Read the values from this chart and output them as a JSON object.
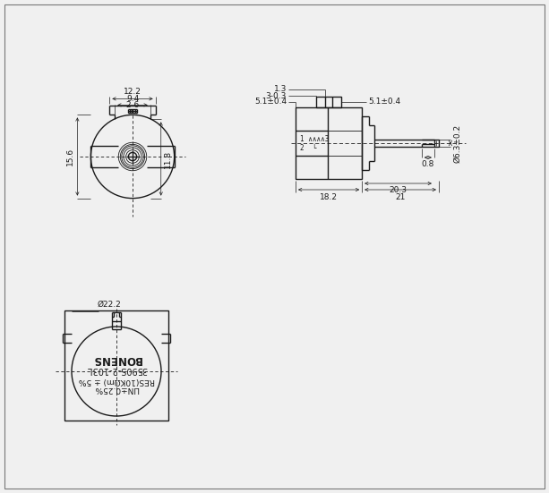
{
  "bg_color": "#f0f0f0",
  "line_color": "#1a1a1a",
  "lw": 1.0,
  "tlw": 0.6,
  "dlw": 0.5,
  "fs": 6.5,
  "dims": {
    "width_outer": "12.2",
    "width_inner": "9.4",
    "width_shaft": "2 6",
    "h_total": "15.6",
    "h_body": "11.8",
    "top_1": "1.3",
    "top_2": "3-0.3",
    "top_3": "5.1±0.4",
    "top_4": "5.1±0.4",
    "shaft_diam": "Ø6.3±0.2",
    "body_w": "18.2",
    "shaft_len": "21",
    "shaft_to_end": "20.3",
    "flat": "0.8",
    "diam_bot": "Ø22.2"
  },
  "text_inside": [
    "BONENS",
    "3590S-2-103L",
    "RES(10KΩm) ± 5%",
    "LIN±0.25%"
  ],
  "winding_text": [
    "1 ∧∧∧∧3",
    "2  └"
  ]
}
